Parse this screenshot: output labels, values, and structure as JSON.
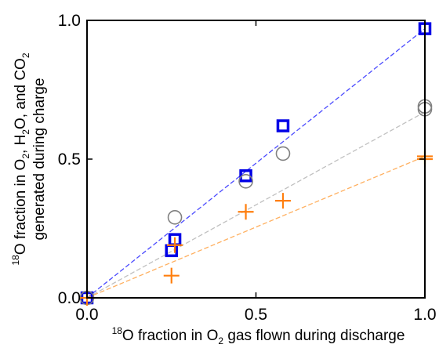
{
  "chart_data": {
    "type": "scatter",
    "xlabel": {
      "prefix_sup": "18",
      "parts": [
        {
          "t": "O fraction in O"
        },
        {
          "t": "2",
          "sub": true
        },
        {
          "t": " gas flown during discharge"
        }
      ]
    },
    "ylabel": {
      "line1": {
        "prefix_sup": "18",
        "parts": [
          {
            "t": "O fraction in O"
          },
          {
            "t": "2",
            "sub": true
          },
          {
            "t": ", H"
          },
          {
            "t": "2",
            "sub": true
          },
          {
            "t": "O, and CO"
          },
          {
            "t": "2",
            "sub": true
          }
        ]
      },
      "line2": "generated during charge"
    },
    "xlim": [
      0.0,
      1.0
    ],
    "ylim": [
      0.0,
      1.0
    ],
    "xticks": [
      "0.0",
      "0.5",
      "1.0"
    ],
    "yticks": [
      "0.0",
      "0.5",
      "1.0"
    ],
    "grid": false,
    "legend": "none",
    "series": [
      {
        "marker": "square",
        "color": "#0000e6",
        "x": [
          0.0,
          0.25,
          0.26,
          0.47,
          0.58,
          1.0
        ],
        "y": [
          0.0,
          0.17,
          0.21,
          0.44,
          0.62,
          0.97
        ],
        "fit": [
          [
            0.0,
            0.0
          ],
          [
            1.0,
            0.97
          ]
        ],
        "fit_color": "#4a4aff"
      },
      {
        "marker": "circle",
        "color": "#808080",
        "x": [
          0.0,
          0.26,
          0.47,
          0.58,
          1.0,
          1.0
        ],
        "y": [
          0.0,
          0.29,
          0.42,
          0.52,
          0.68,
          0.69
        ],
        "fit": [
          [
            0.0,
            0.0
          ],
          [
            1.0,
            0.67
          ]
        ],
        "fit_color": "#c0c0c0"
      },
      {
        "marker": "plus",
        "color": "#ff7f0e",
        "x": [
          0.0,
          0.25,
          0.26,
          0.47,
          0.58,
          1.0,
          1.0
        ],
        "y": [
          0.0,
          0.08,
          0.19,
          0.31,
          0.35,
          0.5,
          0.51
        ],
        "fit": [
          [
            0.0,
            0.0
          ],
          [
            1.0,
            0.51
          ]
        ],
        "fit_color": "#ffb060"
      }
    ]
  }
}
